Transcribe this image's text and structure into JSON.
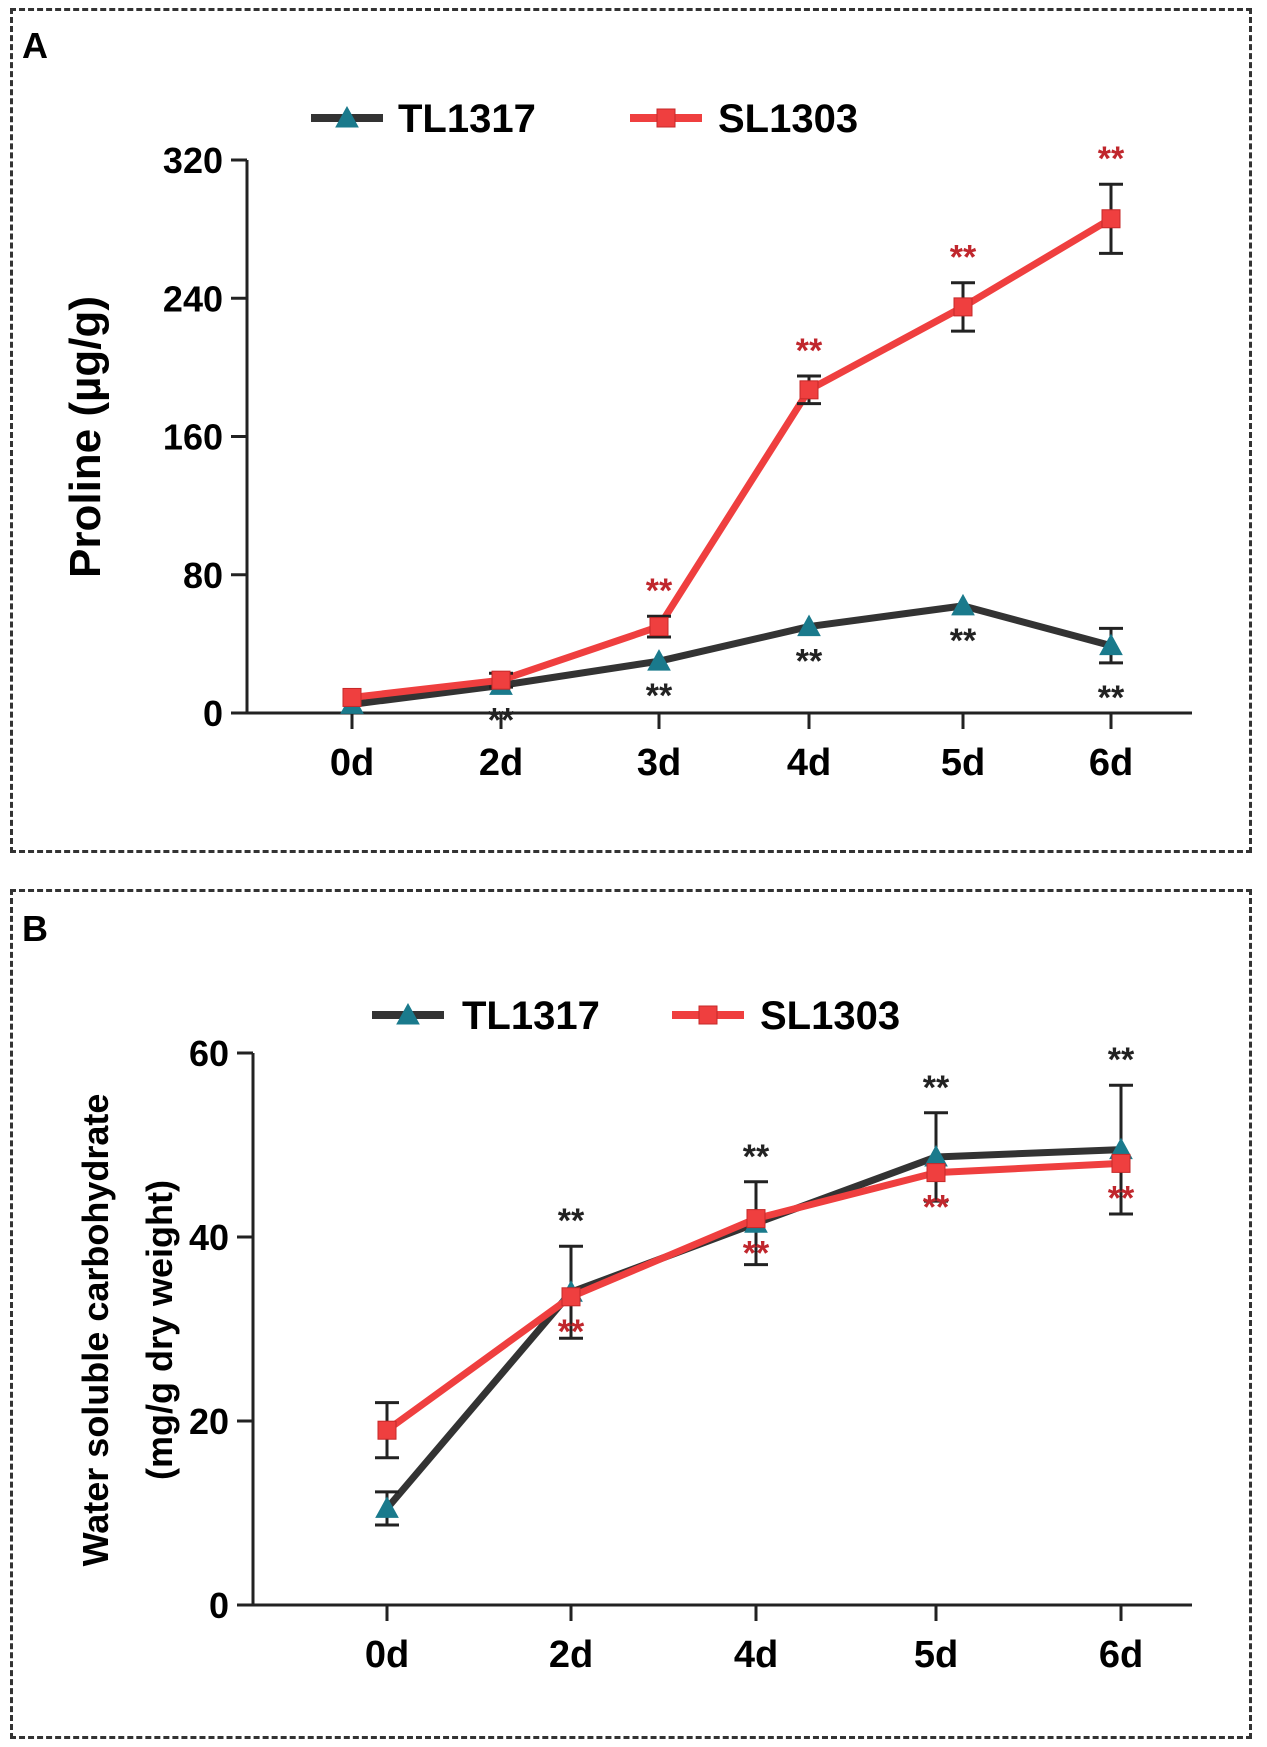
{
  "colors": {
    "black_series": "#333333",
    "red_series": "#ef3f3f",
    "triangle_fill": "#1a7a8c",
    "star_red": "#c0272d",
    "star_black": "#222222",
    "axis": "#222222"
  },
  "chart_data": [
    {
      "type": "line",
      "panel_label": "A",
      "title": "",
      "xlabel": "",
      "ylabel": "Proline (µg/g)",
      "categories": [
        "0d",
        "2d",
        "3d",
        "4d",
        "5d",
        "6d"
      ],
      "ylim": [
        0,
        320
      ],
      "yticks": [
        "0",
        "80",
        "160",
        "240",
        "320"
      ],
      "legend": {
        "position": "top",
        "entries": [
          "TL1317",
          "SL1303"
        ]
      },
      "series": [
        {
          "name": "TL1317",
          "color": "black",
          "marker": "triangle",
          "values": [
            5,
            16,
            30,
            50,
            62,
            39
          ],
          "errors": [
            0,
            0,
            0,
            0,
            0,
            10
          ],
          "significance": [
            "",
            "**",
            "**",
            "**",
            "**",
            "**"
          ],
          "sig_position": "below"
        },
        {
          "name": "SL1303",
          "color": "red",
          "marker": "square",
          "values": [
            9,
            19,
            50,
            187,
            235,
            286
          ],
          "errors": [
            0,
            4,
            6,
            8,
            14,
            20
          ],
          "significance": [
            "",
            "",
            "**",
            "**",
            "**",
            "**"
          ],
          "sig_position": "above"
        }
      ]
    },
    {
      "type": "line",
      "panel_label": "B",
      "title": "",
      "xlabel": "",
      "ylabel": "Water soluble carbohydrate",
      "ylabel2": "(mg/g dry weight)",
      "categories": [
        "0d",
        "2d",
        "4d",
        "5d",
        "6d"
      ],
      "ylim": [
        0,
        60
      ],
      "yticks": [
        "0",
        "20",
        "40",
        "60"
      ],
      "legend": {
        "position": "top",
        "entries": [
          "TL1317",
          "SL1303"
        ]
      },
      "series": [
        {
          "name": "TL1317",
          "color": "black",
          "marker": "triangle",
          "values": [
            10.5,
            34,
            41.5,
            48.7,
            49.5
          ],
          "errors": [
            1.8,
            5,
            4.5,
            4.8,
            7
          ],
          "significance": [
            "",
            "**",
            "**",
            "**",
            "**"
          ],
          "sig_position": "above"
        },
        {
          "name": "SL1303",
          "color": "red",
          "marker": "square",
          "values": [
            19,
            33.5,
            42,
            47,
            48
          ],
          "errors": [
            3,
            0,
            0,
            0,
            0
          ],
          "significance": [
            "",
            "**",
            "**",
            "**",
            "**"
          ],
          "sig_position": "below"
        }
      ]
    }
  ]
}
